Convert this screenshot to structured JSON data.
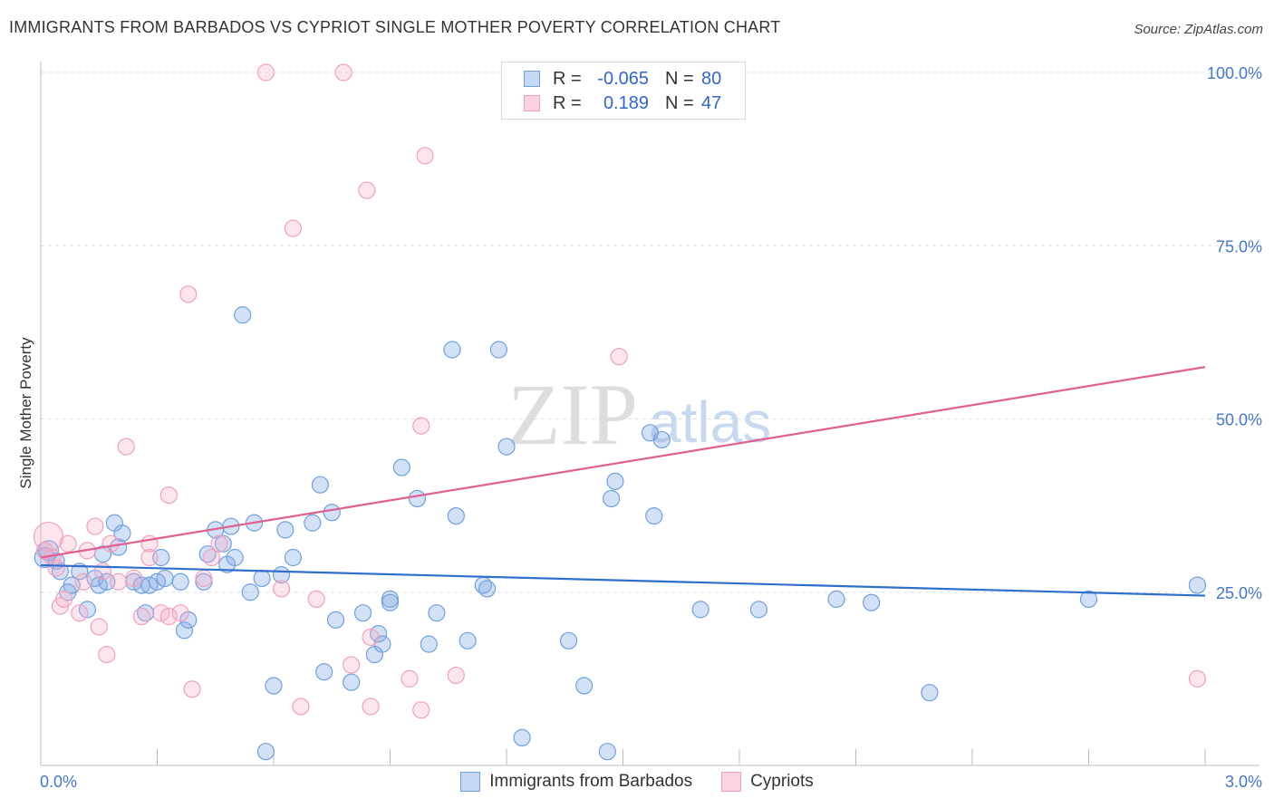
{
  "title": "IMMIGRANTS FROM BARBADOS VS CYPRIOT SINGLE MOTHER POVERTY CORRELATION CHART",
  "source": "Source: ZipAtlas.com",
  "watermark": {
    "zip": "ZIP",
    "atlas": "atlas"
  },
  "colors": {
    "blue": "#6fa0e0",
    "blue_line": "#2f6fcc",
    "pink": "#f0a0bc",
    "pink_line": "#e06090",
    "tick_label": "#4477cc"
  },
  "legend": {
    "rows": [
      {
        "r_label": "R =",
        "r_value": "-0.065",
        "n_label": "N =",
        "n_value": "80",
        "color": "#6fa0e0"
      },
      {
        "r_label": "R =",
        "r_value": "0.189",
        "n_label": "N =",
        "n_value": "47",
        "color": "#f0a0bc"
      }
    ]
  },
  "bottom_legend": [
    "Immigrants from Barbados",
    "Cypriots"
  ],
  "chart_data": {
    "type": "scatter",
    "title": "IMMIGRANTS FROM BARBADOS VS CYPRIOT SINGLE MOTHER POVERTY CORRELATION CHART",
    "xlabel": "",
    "ylabel": "Single Mother Poverty",
    "xlim": [
      0,
      3.0
    ],
    "ylim": [
      0,
      100
    ],
    "x_tick_labels": [
      "0.0%",
      "3.0%"
    ],
    "y_ticks": [
      25,
      50,
      75,
      100
    ],
    "y_tick_labels": [
      "25.0%",
      "50.0%",
      "75.0%",
      "100.0%"
    ],
    "grid": true,
    "series": [
      {
        "name": "Immigrants from Barbados",
        "color": "#6fa0e0",
        "trend": [
          [
            0,
            28.9
          ],
          [
            3.0,
            24.5
          ]
        ],
        "points": [
          [
            0.01,
            30
          ],
          [
            0.02,
            31
          ],
          [
            0.04,
            29.5
          ],
          [
            0.05,
            28
          ],
          [
            0.07,
            25
          ],
          [
            0.08,
            26
          ],
          [
            0.1,
            28
          ],
          [
            0.12,
            22.5
          ],
          [
            0.14,
            27
          ],
          [
            0.15,
            26
          ],
          [
            0.16,
            30.5
          ],
          [
            0.17,
            26.5
          ],
          [
            0.19,
            35
          ],
          [
            0.2,
            31.5
          ],
          [
            0.21,
            33.5
          ],
          [
            0.24,
            26.5
          ],
          [
            0.26,
            26
          ],
          [
            0.27,
            22
          ],
          [
            0.28,
            26
          ],
          [
            0.3,
            26.5
          ],
          [
            0.31,
            30
          ],
          [
            0.32,
            27
          ],
          [
            0.36,
            26.5
          ],
          [
            0.37,
            19.5
          ],
          [
            0.38,
            21
          ],
          [
            0.42,
            26.5
          ],
          [
            0.43,
            30.5
          ],
          [
            0.45,
            34
          ],
          [
            0.47,
            32
          ],
          [
            0.48,
            29
          ],
          [
            0.49,
            34.5
          ],
          [
            0.52,
            65
          ],
          [
            0.5,
            30
          ],
          [
            0.54,
            25
          ],
          [
            0.55,
            35
          ],
          [
            0.57,
            27
          ],
          [
            0.58,
            2
          ],
          [
            0.6,
            11.5
          ],
          [
            0.62,
            27.5
          ],
          [
            0.63,
            34
          ],
          [
            0.65,
            30
          ],
          [
            0.7,
            35
          ],
          [
            0.72,
            40.5
          ],
          [
            0.73,
            13.5
          ],
          [
            0.75,
            36.5
          ],
          [
            0.76,
            21
          ],
          [
            0.8,
            12
          ],
          [
            0.83,
            22
          ],
          [
            0.86,
            16
          ],
          [
            0.87,
            19
          ],
          [
            0.88,
            17.5
          ],
          [
            0.9,
            24
          ],
          [
            0.9,
            23.5
          ],
          [
            0.93,
            43
          ],
          [
            0.97,
            38.5
          ],
          [
            1.0,
            17.5
          ],
          [
            1.02,
            22
          ],
          [
            1.06,
            60
          ],
          [
            1.07,
            36
          ],
          [
            1.1,
            18
          ],
          [
            1.14,
            26
          ],
          [
            1.15,
            25.5
          ],
          [
            1.18,
            60
          ],
          [
            1.2,
            46
          ],
          [
            1.24,
            4
          ],
          [
            1.36,
            18
          ],
          [
            1.4,
            11.5
          ],
          [
            1.46,
            2
          ],
          [
            1.47,
            38.5
          ],
          [
            1.48,
            41
          ],
          [
            1.57,
            48
          ],
          [
            1.6,
            47
          ],
          [
            1.58,
            36
          ],
          [
            1.7,
            22.5
          ],
          [
            1.85,
            22.5
          ],
          [
            2.05,
            24
          ],
          [
            2.14,
            23.5
          ],
          [
            2.29,
            10.5
          ],
          [
            2.7,
            24
          ],
          [
            2.98,
            26
          ]
        ]
      },
      {
        "name": "Cypriots",
        "color": "#f0a0bc",
        "trend": [
          [
            0,
            30.0
          ],
          [
            3.0,
            57.5
          ]
        ],
        "points": [
          [
            0.01,
            31
          ],
          [
            0.03,
            30
          ],
          [
            0.05,
            23
          ],
          [
            0.06,
            24
          ],
          [
            0.07,
            32
          ],
          [
            0.1,
            22
          ],
          [
            0.11,
            26.5
          ],
          [
            0.12,
            31
          ],
          [
            0.14,
            34.5
          ],
          [
            0.15,
            20
          ],
          [
            0.16,
            28
          ],
          [
            0.17,
            16
          ],
          [
            0.18,
            32
          ],
          [
            0.2,
            26.5
          ],
          [
            0.22,
            46
          ],
          [
            0.24,
            27
          ],
          [
            0.26,
            21.5
          ],
          [
            0.28,
            30
          ],
          [
            0.28,
            32
          ],
          [
            0.31,
            22
          ],
          [
            0.33,
            21.5
          ],
          [
            0.33,
            39
          ],
          [
            0.36,
            22
          ],
          [
            0.38,
            68
          ],
          [
            0.39,
            11
          ],
          [
            0.42,
            27
          ],
          [
            0.44,
            30
          ],
          [
            0.46,
            32
          ],
          [
            0.58,
            100
          ],
          [
            0.62,
            25.5
          ],
          [
            0.65,
            77.5
          ],
          [
            0.67,
            8.5
          ],
          [
            0.71,
            24
          ],
          [
            0.78,
            100
          ],
          [
            0.8,
            14.5
          ],
          [
            0.84,
            83
          ],
          [
            0.85,
            18.5
          ],
          [
            0.85,
            8.5
          ],
          [
            0.95,
            12.5
          ],
          [
            0.98,
            8
          ],
          [
            0.98,
            49
          ],
          [
            0.99,
            88
          ],
          [
            1.07,
            13
          ],
          [
            1.49,
            59
          ],
          [
            2.98,
            12.5
          ],
          [
            0.02,
            33
          ],
          [
            0.04,
            28.5
          ]
        ]
      }
    ]
  }
}
